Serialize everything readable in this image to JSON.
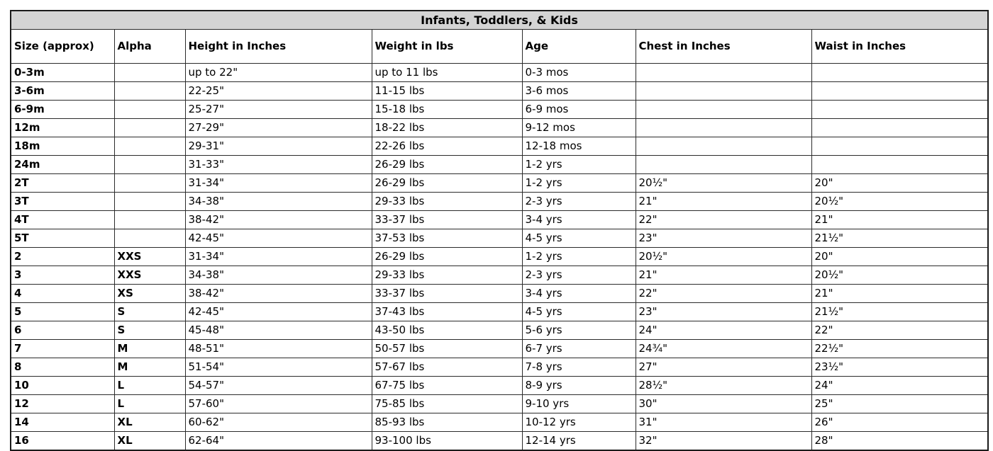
{
  "table": {
    "title": "Infants, Toddlers, & Kids",
    "columns": [
      "Size (approx)",
      "Alpha",
      "Height in Inches",
      "Weight in lbs",
      "Age",
      "Chest in Inches",
      "Waist in Inches"
    ],
    "rows": [
      [
        "0-3m",
        "",
        "up to 22\"",
        "up to 11 lbs",
        "0-3 mos",
        "",
        ""
      ],
      [
        "3-6m",
        "",
        "22-25\"",
        "11-15 lbs",
        "3-6 mos",
        "",
        ""
      ],
      [
        "6-9m",
        "",
        "25-27\"",
        "15-18 lbs",
        "6-9 mos",
        "",
        ""
      ],
      [
        "12m",
        "",
        "27-29\"",
        "18-22 lbs",
        "9-12 mos",
        "",
        ""
      ],
      [
        "18m",
        "",
        "29-31\"",
        "22-26 lbs",
        "12-18 mos",
        "",
        ""
      ],
      [
        "24m",
        "",
        "31-33\"",
        "26-29 lbs",
        "1-2 yrs",
        "",
        ""
      ],
      [
        "2T",
        "",
        "31-34\"",
        "26-29 lbs",
        "1-2 yrs",
        "20½\"",
        "20\""
      ],
      [
        "3T",
        "",
        "34-38\"",
        "29-33 lbs",
        "2-3 yrs",
        "21\"",
        "20½\""
      ],
      [
        "4T",
        "",
        "38-42\"",
        "33-37 lbs",
        "3-4 yrs",
        "22\"",
        "21\""
      ],
      [
        "5T",
        "",
        "42-45\"",
        "37-53 lbs",
        "4-5 yrs",
        "23\"",
        "21½\""
      ],
      [
        "2",
        "XXS",
        "31-34\"",
        "26-29 lbs",
        "1-2 yrs",
        "20½\"",
        "20\""
      ],
      [
        "3",
        "XXS",
        "34-38\"",
        "29-33 lbs",
        "2-3 yrs",
        "21\"",
        "20½\""
      ],
      [
        "4",
        "XS",
        "38-42\"",
        "33-37 lbs",
        "3-4 yrs",
        "22\"",
        "21\""
      ],
      [
        "5",
        "S",
        "42-45\"",
        "37-43 lbs",
        "4-5 yrs",
        "23\"",
        "21½\""
      ],
      [
        "6",
        "S",
        "45-48\"",
        "43-50 lbs",
        "5-6 yrs",
        "24\"",
        "22\""
      ],
      [
        "7",
        "M",
        "48-51\"",
        "50-57 lbs",
        "6-7 yrs",
        "24¾\"",
        "22½\""
      ],
      [
        "8",
        "M",
        "51-54\"",
        "57-67 lbs",
        "7-8 yrs",
        "27\"",
        "23½\""
      ],
      [
        "10",
        "L",
        "54-57\"",
        "67-75 lbs",
        "8-9 yrs",
        "28½\"",
        "24\""
      ],
      [
        "12",
        "L",
        "57-60\"",
        "75-85 lbs",
        "9-10 yrs",
        "30\"",
        "25\""
      ],
      [
        "14",
        "XL",
        "60-62\"",
        "85-93 lbs",
        "10-12 yrs",
        "31\"",
        "26\""
      ],
      [
        "16",
        "XL",
        "62-64\"",
        "93-100 lbs",
        "12-14 yrs",
        "32\"",
        "28\""
      ]
    ],
    "colors": {
      "title_bg": "#d4d4d4",
      "border": "#2b2b2b",
      "text": "#000000",
      "background": "#ffffff"
    }
  }
}
